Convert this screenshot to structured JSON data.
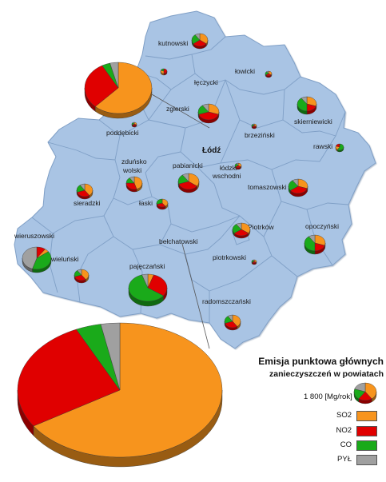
{
  "legend": {
    "title_line1": "Emisja punktowa głównych",
    "title_line2": "zanieczyszczeń w powiatach",
    "scale_label": "1 800 [Mg/rok]",
    "items": [
      {
        "label": "SO2",
        "color": "#f7941d"
      },
      {
        "label": "NO2",
        "color": "#e00000"
      },
      {
        "label": "CO",
        "color": "#1aaa1a"
      },
      {
        "label": "PYŁ",
        "color": "#a0a0a0"
      }
    ]
  },
  "colors": {
    "map_fill": "#a9c4e4",
    "border": "#7f9fc6"
  },
  "labels": {
    "kutnowski": "kutnowski",
    "lowicki": "łowicki",
    "leczycki": "łęczycki",
    "zgierski": "zgierski",
    "skierniewicki": "skierniewicki",
    "poddebicki": "poddębicki",
    "brzezinski": "brzeziński",
    "lodz": "Łódź",
    "rawski": "rawski",
    "zdunskowolski_1": "zduńsko",
    "zdunskowolski_2": "wolski",
    "pabianicki": "pabianicki",
    "lodzkiwschodni_1": "łódzki",
    "lodzkiwschodni_2": "wschodni",
    "sieradzki": "sieradzki",
    "laski": "łaski",
    "tomaszowski": "tomaszowski",
    "piotrkow": "Piotrków",
    "opoczynski": "opoczyński",
    "wieruszowski": "wieruszowski",
    "belchatowski": "bełchatowski",
    "wielunski": "wieluński",
    "piotrkowski": "piotrkowski",
    "pajeczanski": "pajęczański",
    "radomszczanski": "radomszczański"
  }
}
